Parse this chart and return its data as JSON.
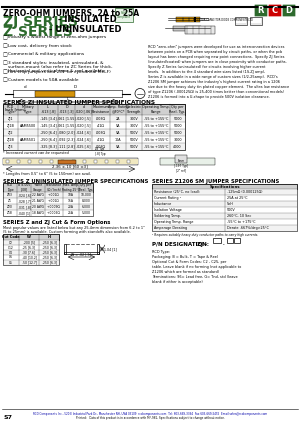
{
  "title_line": "ZERO-OHM JUMPERS, 2A to 25A",
  "series1_name": "ZJ SERIES",
  "series1_sub": " - INSULATED",
  "series2_name": "Z SERIES",
  "series2_sub": " - UNINSULATED",
  "bg_color": "#ffffff",
  "green_color": "#2d6a2d",
  "red_color": "#cc0000",
  "bullet_points": [
    "Industry's widest range of zero-ohm jumpers",
    "Low cost, delivery from stock",
    "Commercial & military applications",
    "3 standard styles: insulated, uninsulated, &\n   surface-mount (also refer to ZC Series for thick-\n   film chip jumpers and ZCF for cylindrical MeLF)",
    "Horizontal and vertical tape & reel available",
    "Custom models to 50A available"
  ],
  "desc_lines": [
    "RCD \"zero-ohm\" jumpers were developed for use as interconnection devices",
    "between points on a PCB when separated by circuit paths, or when the pcb",
    "layout has been changed requiring new point connections.  Specify ZJ Series",
    "(insulated/coated) when jumpers are in close proximity with conductor paths.",
    "Specify Z Series (uninsulated) for circuits involving higher current",
    "levels.  In addition to the 4 standard wire sizes listed (1S-ZJ amp),",
    "Series Z is available in a wide range of custom sizes (1/2-25amp).  RCD's",
    "Z1206 SM jumper achieves the industry's highest current rating in a 1206",
    "size due to the heavy duty tin plated copper element.  The ultra low resistance",
    "of type Z1206 (.000125Ω) is 25-400 times better than conventional models/",
    "Z1206 is formed into a U-shape to provide 500V isolation clearance."
  ],
  "spec_table_title": "SERIES ZJ INSULATED JUMPER SPECIFICATIONS",
  "spec_headers": [
    "RCD\nType",
    "Military\nType",
    "L\n.613 [.8]",
    "D\n.013 [.3]",
    "d\n.020 [.06]",
    "Maximum\nResistance",
    "Amp. Rating\n@70°C*",
    "Dielectric\nStrength",
    "Operating Temp.\nRange",
    "Qty per\nReel, Typ."
  ],
  "spec_rows": [
    [
      "ZJ1",
      "",
      ".145 [3.4]",
      ".061 [1.55]",
      ".020 [.5]",
      ".003Ω",
      "2A",
      "300V",
      "-55 to +155°C",
      "5000"
    ],
    [
      "ZJ1B",
      "AAM5500",
      ".145 [3.4]",
      ".061 [1.55]",
      ".020 [.5]",
      ".41Ω",
      "5A",
      "300V",
      "-55 to +155°C",
      "5000"
    ],
    [
      "ZJ2",
      "",
      ".250 [6.4]",
      ".080 [2.0]",
      ".024 [.6]",
      ".003Ω",
      "5A",
      "500V",
      "-55 to +155°C",
      "5000"
    ],
    [
      "ZJ2B",
      "AAM5501",
      ".250 [6.4]",
      ".092 [2.3]",
      ".024 [.6]",
      ".41Ω",
      "10A",
      "500V",
      "-55 to +155°C",
      "3000"
    ],
    [
      "ZJ3",
      "",
      ".325 [8.3]",
      ".111 [2.8]",
      ".025 [.6]",
      ".003Ω",
      "5A",
      "500V",
      "-55 to +155°C",
      "4000"
    ]
  ],
  "footnote": "* Increased current can be requested",
  "zj_unins_title": "SERIES Z UNINSULATED JUMPER SPECIFICATIONS",
  "zj_unins_headers": [
    "RCD\nType",
    "d ±.005\n[.08]",
    "+Wire\nGauge",
    "Resistance\n(Ω / Inch)",
    "Max. Amp.\nRating 25°C",
    "Qty per\nReel, Typ."
  ],
  "zj_unins_rows": [
    [
      "Z03",
      ".024 [.6]",
      "22 AWG",
      "+.001Ω",
      "10A",
      "10,000"
    ],
    [
      "Z1",
      ".028 [.7]",
      "21 AWG",
      "+.001Ω",
      "15A",
      "8,000"
    ],
    [
      "Z20",
      ".031 [.8]",
      "20 AWG",
      "+.0009Ω",
      "20A",
      "6,000"
    ],
    [
      "Z18",
      ".040 [1]",
      "18 AWG",
      "+.0006Ω",
      "25A",
      "5,000"
    ]
  ],
  "sm_title": "SERIES Z1206 SM JUMPER SPECIFICATIONS",
  "sm_rows": [
    [
      "Resistance (25°C, no load):",
      ".125mΩ (0.000125Ω)"
    ],
    [
      "Current Rating ¹",
      "25A at 25°C"
    ],
    [
      "Inductance",
      "5nH"
    ],
    [
      "Isolation Voltage",
      "500V"
    ],
    [
      "Soldering Temp.",
      "260°C, 10 Sec"
    ],
    [
      "Operating Temp. Range",
      "-55°C to +175°C"
    ],
    [
      "Amperage Derating",
      "Derate .667%/deg>25°C"
    ]
  ],
  "sm_footnote": "¹ Requires suitably heavy duty conductor paths to carry high currents.",
  "cut_title": "SERIES Z and ZJ Cut & Form Options",
  "cut_text1": "Most popular values are listed below but any 25.4mm dimension from 6.2 to 1\"",
  "cut_text2": "(5 to 25mm) is available. Custom forming with standoffs also available.",
  "cut_headers": [
    "Cut Code",
    "W",
    "H"
  ],
  "cut_rows": [
    [
      "C2",
      ".200 [5]",
      ".250 [6.3]"
    ],
    [
      "C12",
      ".25 [6.3]",
      ".250 [6.3]"
    ],
    [
      "C4",
      ".30 [7.6]",
      ".250 [6.3]"
    ],
    [
      "C6",
      ".40 [10.2]",
      ".250 [6.3]"
    ],
    [
      "C5",
      ".50 [12.7]",
      ".250 [6.3]"
    ]
  ],
  "pn_title": "P/N DESIGNATION:",
  "pn_lines": [
    "RCD Type:",
    "Packaging: B = Bulk, T = Tape & Reel",
    "Optional Cut & Form Codes: C2 - C25, per",
    "table. Leave blank if no forming (not applicable to",
    "Z1206 which are formed as standard)",
    "Terminations: 96= Lead free, G= Tnd, std (leave",
    "blank if either is acceptable)"
  ],
  "footer_text": "RCD Components Inc., 520 E Industrial Park Dr., Manchester NH, USA 03109  rcdcomponents.com  Tel: 603-669-3364  Fax 603-669-5455  Email:sales@rcdcomponents.com",
  "footer_text2": "Printed:   Data of this product is in accordance with MF-981, Specifications subject to change without notice.",
  "page_num": "S7"
}
